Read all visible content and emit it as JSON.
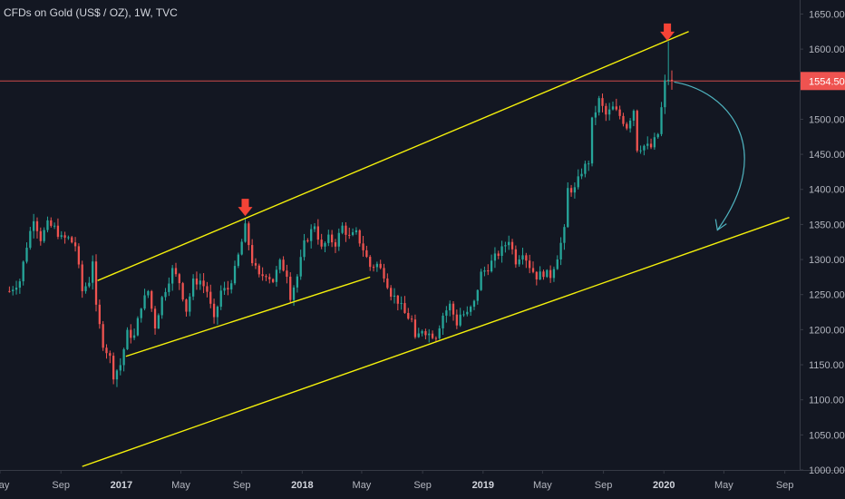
{
  "header": {
    "title": "CFDs on Gold (US$ / OZ), 1W, TVC"
  },
  "colors": {
    "background": "#131722",
    "up": "#26a69a",
    "down": "#ef5350",
    "channel_line": "#f5f10b",
    "arrow": "#f44336",
    "projection_arrow": "#4fb3bf",
    "price_line": "#ef5350",
    "axis_text": "#b2b5be"
  },
  "chart_data": {
    "type": "candlestick",
    "title": "CFDs on Gold (US$ / OZ), 1W, TVC",
    "ylim": [
      1000,
      1670
    ],
    "xlim": [
      "2016-05",
      "2020-10"
    ],
    "y_ticks": [
      1000,
      1050,
      1100,
      1150,
      1200,
      1250,
      1300,
      1350,
      1400,
      1450,
      1500,
      1550,
      1600,
      1650
    ],
    "y_tick_labels": [
      "1000.00",
      "1050.00",
      "1100.00",
      "1150.00",
      "1200.00",
      "1250.00",
      "1300.00",
      "1350.00",
      "1400.00",
      "1450.00",
      "1500.00",
      "1550.00",
      "1600.00",
      "1650.00"
    ],
    "x_ticks": [
      {
        "date": "2016-05",
        "label": "May",
        "bold": false
      },
      {
        "date": "2016-09",
        "label": "Sep",
        "bold": false
      },
      {
        "date": "2017-01",
        "label": "2017",
        "bold": true
      },
      {
        "date": "2017-05",
        "label": "May",
        "bold": false
      },
      {
        "date": "2017-09",
        "label": "Sep",
        "bold": false
      },
      {
        "date": "2018-01",
        "label": "2018",
        "bold": true
      },
      {
        "date": "2018-05",
        "label": "May",
        "bold": false
      },
      {
        "date": "2018-09",
        "label": "Sep",
        "bold": false
      },
      {
        "date": "2019-01",
        "label": "2019",
        "bold": true
      },
      {
        "date": "2019-05",
        "label": "May",
        "bold": false
      },
      {
        "date": "2019-09",
        "label": "Sep",
        "bold": false
      },
      {
        "date": "2020-01",
        "label": "2020",
        "bold": true
      },
      {
        "date": "2020-05",
        "label": "May",
        "bold": false
      },
      {
        "date": "2020-09",
        "label": "Sep",
        "bold": false
      }
    ],
    "last_price": 1554.5,
    "last_price_label": "1554.50",
    "price_path": [
      [
        "2016-05-20",
        1255
      ],
      [
        "2016-06-10",
        1270
      ],
      [
        "2016-06-24",
        1320
      ],
      [
        "2016-07-08",
        1360
      ],
      [
        "2016-07-22",
        1330
      ],
      [
        "2016-08-05",
        1350
      ],
      [
        "2016-08-19",
        1345
      ],
      [
        "2016-09-02",
        1330
      ],
      [
        "2016-09-16",
        1330
      ],
      [
        "2016-09-30",
        1320
      ],
      [
        "2016-10-14",
        1255
      ],
      [
        "2016-10-28",
        1270
      ],
      [
        "2016-11-04",
        1300
      ],
      [
        "2016-11-11",
        1230
      ],
      [
        "2016-11-25",
        1180
      ],
      [
        "2016-12-09",
        1160
      ],
      [
        "2016-12-16",
        1135
      ],
      [
        "2016-12-30",
        1150
      ],
      [
        "2017-01-13",
        1195
      ],
      [
        "2017-01-27",
        1190
      ],
      [
        "2017-02-10",
        1235
      ],
      [
        "2017-02-24",
        1255
      ],
      [
        "2017-03-10",
        1205
      ],
      [
        "2017-03-24",
        1245
      ],
      [
        "2017-04-14",
        1285
      ],
      [
        "2017-04-28",
        1268
      ],
      [
        "2017-05-12",
        1228
      ],
      [
        "2017-05-26",
        1268
      ],
      [
        "2017-06-09",
        1270
      ],
      [
        "2017-06-23",
        1255
      ],
      [
        "2017-07-07",
        1212
      ],
      [
        "2017-07-21",
        1255
      ],
      [
        "2017-08-04",
        1258
      ],
      [
        "2017-08-18",
        1285
      ],
      [
        "2017-09-01",
        1325
      ],
      [
        "2017-09-08",
        1346
      ],
      [
        "2017-09-22",
        1298
      ],
      [
        "2017-10-06",
        1275
      ],
      [
        "2017-10-20",
        1280
      ],
      [
        "2017-11-03",
        1270
      ],
      [
        "2017-11-17",
        1295
      ],
      [
        "2017-12-01",
        1280
      ],
      [
        "2017-12-08",
        1248
      ],
      [
        "2017-12-22",
        1276
      ],
      [
        "2018-01-05",
        1322
      ],
      [
        "2018-01-26",
        1350
      ],
      [
        "2018-02-09",
        1315
      ],
      [
        "2018-02-23",
        1330
      ],
      [
        "2018-03-09",
        1323
      ],
      [
        "2018-03-23",
        1347
      ],
      [
        "2018-04-06",
        1332
      ],
      [
        "2018-04-20",
        1337
      ],
      [
        "2018-05-04",
        1315
      ],
      [
        "2018-05-18",
        1290
      ],
      [
        "2018-06-01",
        1293
      ],
      [
        "2018-06-15",
        1279
      ],
      [
        "2018-06-29",
        1252
      ],
      [
        "2018-07-13",
        1241
      ],
      [
        "2018-07-27",
        1223
      ],
      [
        "2018-08-10",
        1213
      ],
      [
        "2018-08-17",
        1184
      ],
      [
        "2018-08-31",
        1201
      ],
      [
        "2018-09-14",
        1194
      ],
      [
        "2018-09-28",
        1192
      ],
      [
        "2018-10-12",
        1221
      ],
      [
        "2018-10-26",
        1235
      ],
      [
        "2018-11-09",
        1209
      ],
      [
        "2018-11-16",
        1222
      ],
      [
        "2018-11-30",
        1222
      ],
      [
        "2018-12-14",
        1238
      ],
      [
        "2018-12-28",
        1280
      ],
      [
        "2019-01-11",
        1289
      ],
      [
        "2019-01-25",
        1303
      ],
      [
        "2019-02-08",
        1314
      ],
      [
        "2019-02-22",
        1329
      ],
      [
        "2019-03-08",
        1298
      ],
      [
        "2019-03-22",
        1312
      ],
      [
        "2019-04-05",
        1291
      ],
      [
        "2019-04-19",
        1276
      ],
      [
        "2019-05-03",
        1281
      ],
      [
        "2019-05-17",
        1277
      ],
      [
        "2019-05-31",
        1305
      ],
      [
        "2019-06-14",
        1341
      ],
      [
        "2019-06-21",
        1400
      ],
      [
        "2019-07-05",
        1400
      ],
      [
        "2019-07-19",
        1426
      ],
      [
        "2019-08-02",
        1440
      ],
      [
        "2019-08-09",
        1497
      ],
      [
        "2019-08-23",
        1527
      ],
      [
        "2019-09-06",
        1506
      ],
      [
        "2019-09-20",
        1516
      ],
      [
        "2019-10-04",
        1505
      ],
      [
        "2019-10-18",
        1490
      ],
      [
        "2019-11-01",
        1514
      ],
      [
        "2019-11-08",
        1459
      ],
      [
        "2019-11-22",
        1462
      ],
      [
        "2019-12-06",
        1460
      ],
      [
        "2019-12-20",
        1479
      ],
      [
        "2020-01-03",
        1552
      ],
      [
        "2020-01-10",
        1558
      ],
      [
        "2020-01-17",
        1554.5
      ]
    ],
    "channels": [
      {
        "name": "upper-channel",
        "from": [
          "2016-11-14",
          1270
        ],
        "to": [
          "2020-02-20",
          1625
        ]
      },
      {
        "name": "lower-channel",
        "from": [
          "2016-10-14",
          1005
        ],
        "to": [
          "2020-09-10",
          1360
        ]
      },
      {
        "name": "inner-channel",
        "from": [
          "2017-01-10",
          1162
        ],
        "to": [
          "2018-05-18",
          1275
        ]
      }
    ],
    "markers": [
      {
        "name": "top-arrow-2017",
        "date": "2017-09-08",
        "price": 1362
      },
      {
        "name": "top-arrow-2020",
        "date": "2020-01-08",
        "price": 1612
      }
    ],
    "projection": {
      "from": [
        "2020-01-18",
        1553
      ],
      "to": [
        "2020-04-18",
        1342
      ]
    }
  }
}
